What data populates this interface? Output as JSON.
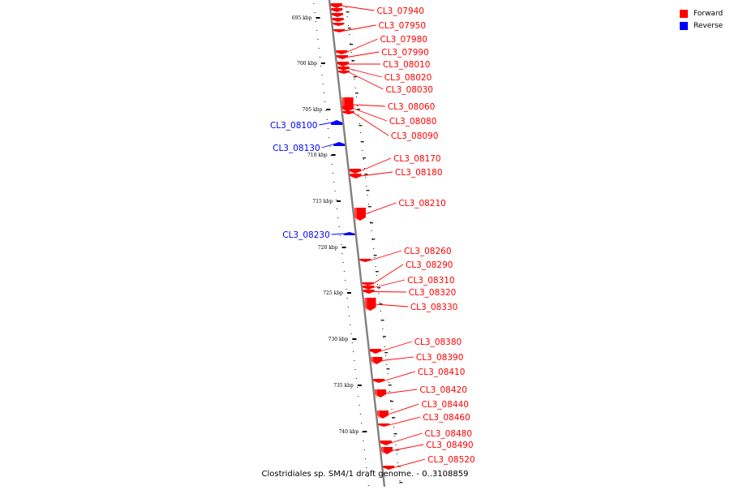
{
  "legend": {
    "items": [
      {
        "label": "Forward",
        "color": "#ff0000"
      },
      {
        "label": "Reverse",
        "color": "#0000ff"
      }
    ]
  },
  "caption": "Clostridiales sp. SM4/1 draft genome. - 0..3108859",
  "colors": {
    "forward": "#ff0000",
    "reverse": "#0000ff",
    "backbone": "#808080"
  },
  "scale": {
    "ticks": [
      "695 kbp",
      "700 kbp",
      "705 kbp",
      "710 kbp",
      "715 kbp",
      "720 kbp",
      "725 kbp",
      "730 kbp",
      "735 kbp",
      "740 kbp"
    ]
  },
  "genes": [
    {
      "label": "CL3_07940",
      "strand": "forward"
    },
    {
      "label": "CL3_07950",
      "strand": "forward"
    },
    {
      "label": "CL3_07980",
      "strand": "forward"
    },
    {
      "label": "CL3_07990",
      "strand": "forward"
    },
    {
      "label": "CL3_08010",
      "strand": "forward"
    },
    {
      "label": "CL3_08020",
      "strand": "forward"
    },
    {
      "label": "CL3_08030",
      "strand": "forward"
    },
    {
      "label": "CL3_08060",
      "strand": "forward"
    },
    {
      "label": "CL3_08080",
      "strand": "forward"
    },
    {
      "label": "CL3_08090",
      "strand": "forward"
    },
    {
      "label": "CL3_08100",
      "strand": "reverse"
    },
    {
      "label": "CL3_08130",
      "strand": "reverse"
    },
    {
      "label": "CL3_08170",
      "strand": "forward"
    },
    {
      "label": "CL3_08180",
      "strand": "forward"
    },
    {
      "label": "CL3_08210",
      "strand": "forward"
    },
    {
      "label": "CL3_08230",
      "strand": "reverse"
    },
    {
      "label": "CL3_08260",
      "strand": "forward"
    },
    {
      "label": "CL3_08290",
      "strand": "forward"
    },
    {
      "label": "CL3_08310",
      "strand": "forward"
    },
    {
      "label": "CL3_08320",
      "strand": "forward"
    },
    {
      "label": "CL3_08330",
      "strand": "forward"
    },
    {
      "label": "CL3_08380",
      "strand": "forward"
    },
    {
      "label": "CL3_08390",
      "strand": "forward"
    },
    {
      "label": "CL3_08410",
      "strand": "forward"
    },
    {
      "label": "CL3_08420",
      "strand": "forward"
    },
    {
      "label": "CL3_08440",
      "strand": "forward"
    },
    {
      "label": "CL3_08460",
      "strand": "forward"
    },
    {
      "label": "CL3_08480",
      "strand": "forward"
    },
    {
      "label": "CL3_08490",
      "strand": "forward"
    },
    {
      "label": "CL3_08520",
      "strand": "forward"
    }
  ]
}
